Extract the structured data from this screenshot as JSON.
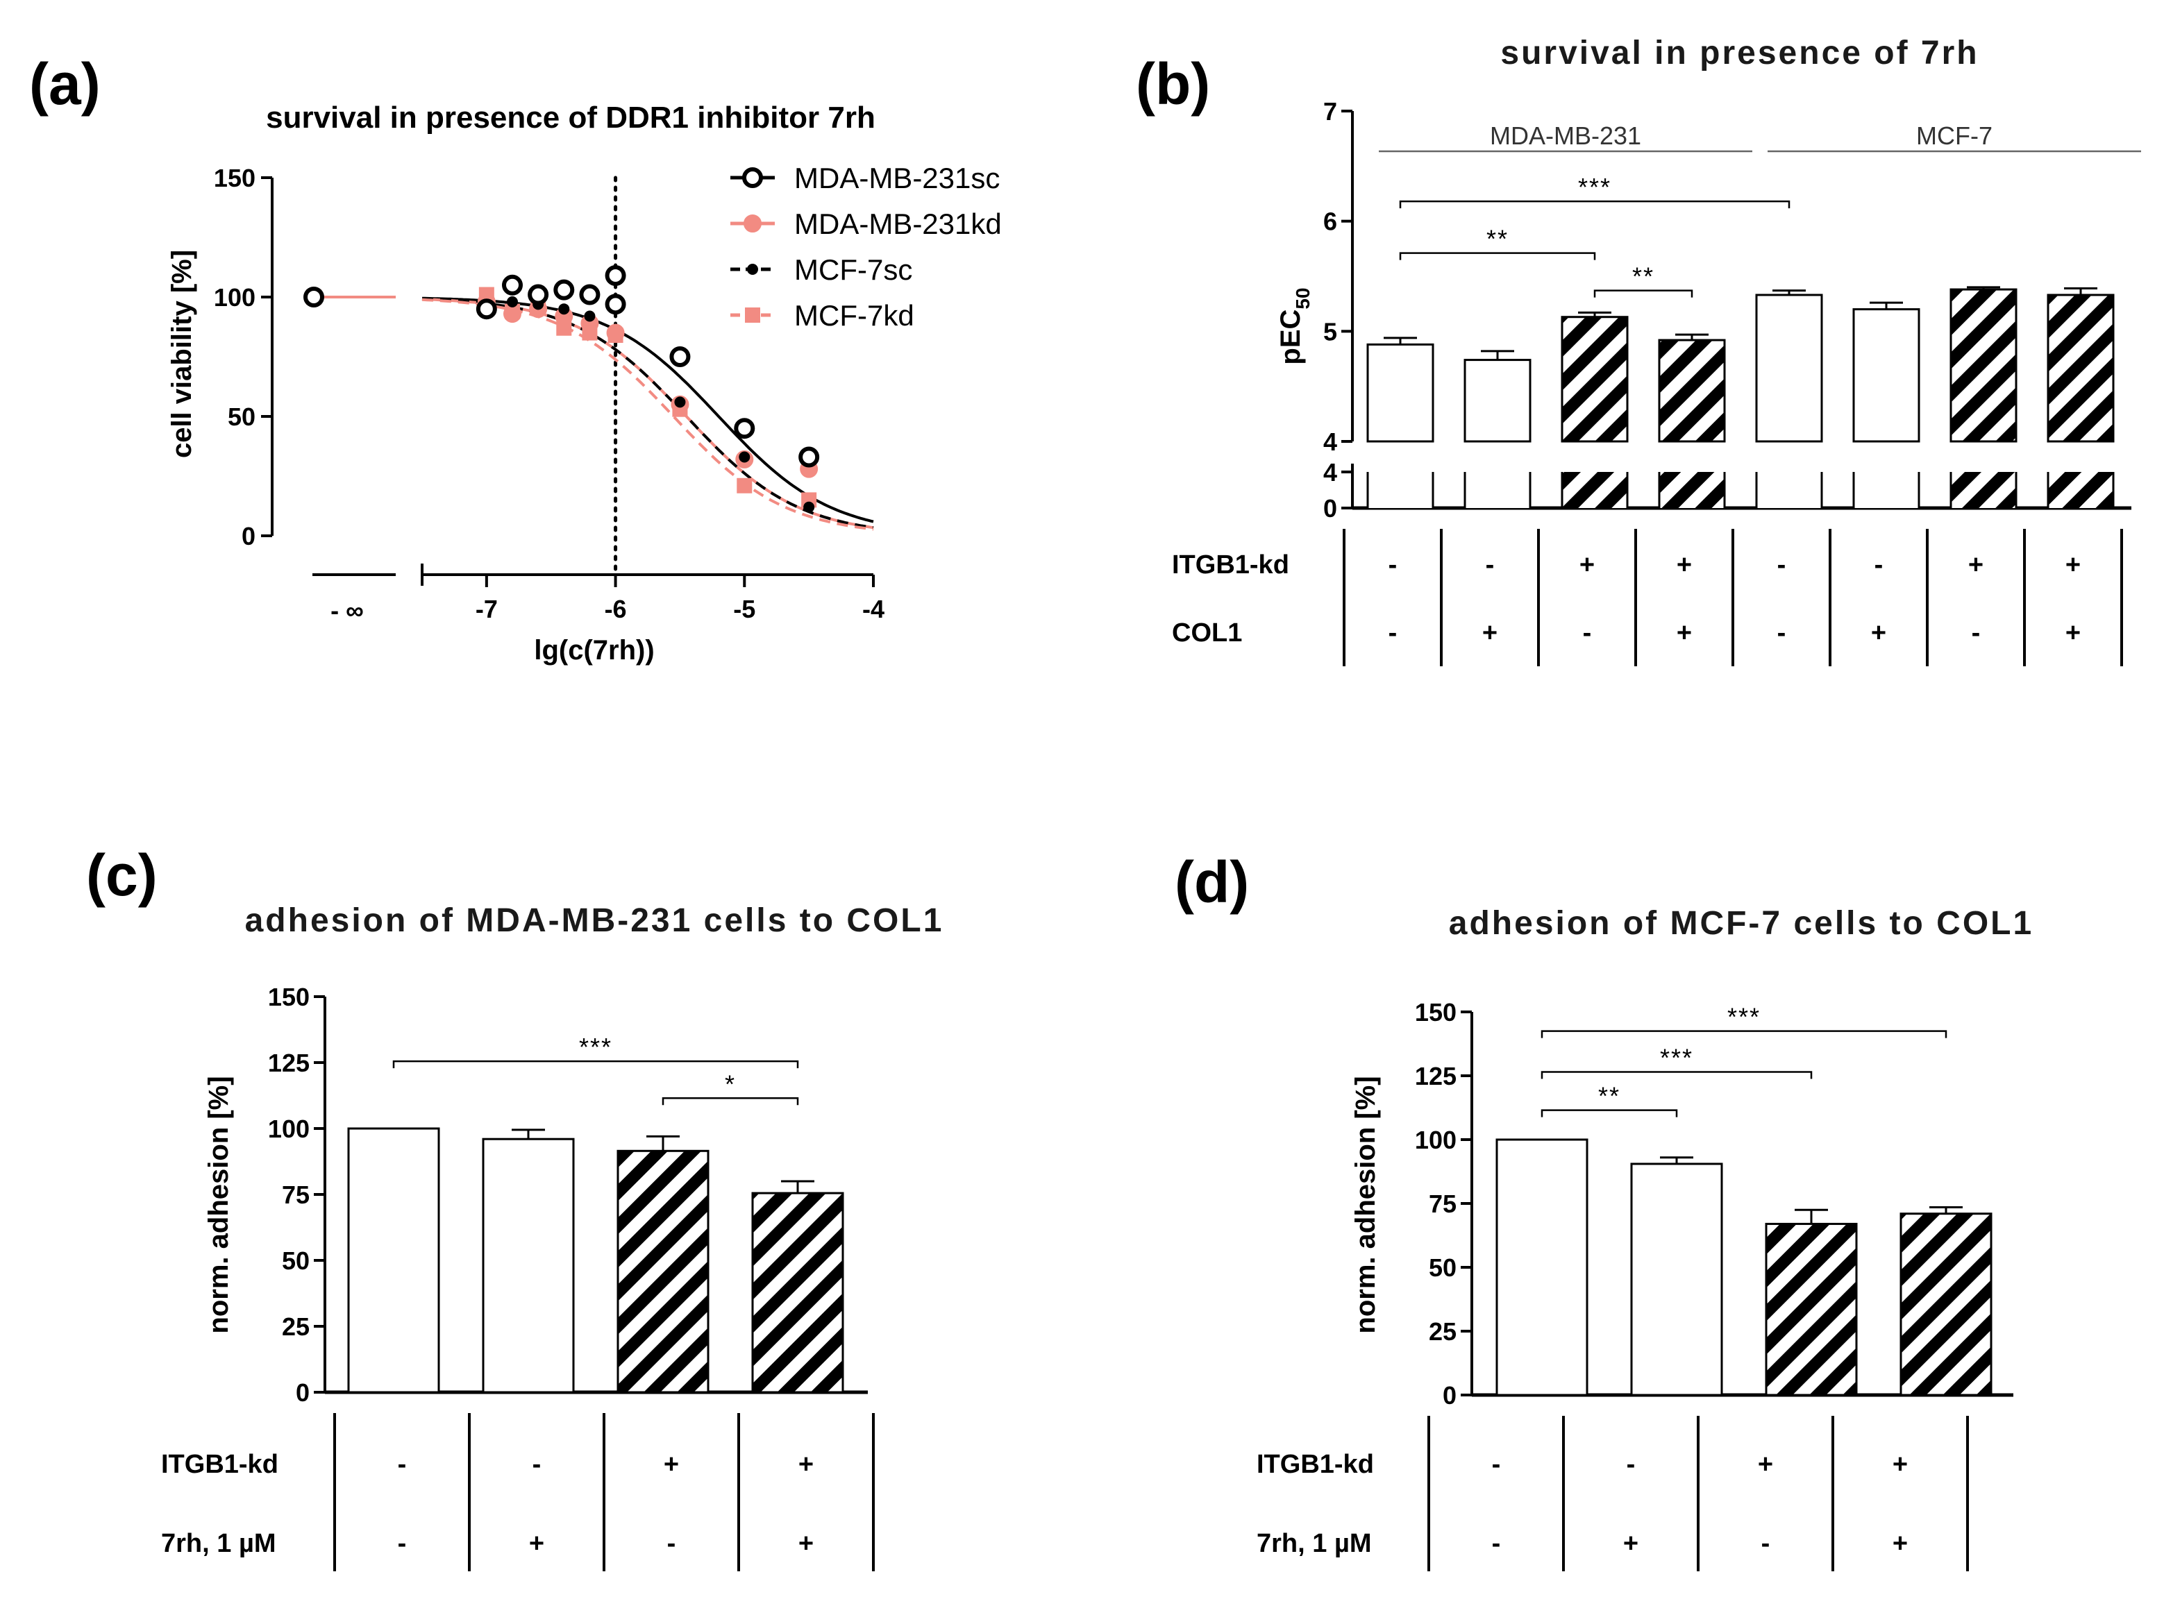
{
  "panels": [
    {
      "letter": "(a)"
    },
    {
      "letter": "(b)"
    },
    {
      "letter": "(c)"
    },
    {
      "letter": "(d)"
    }
  ],
  "chart_data": [
    {
      "type": "line",
      "panel": "(a)",
      "title": "survival in presence of DDR1 inhibitor 7rh",
      "xlabel": "lg(c(7rh))",
      "ylabel": "cell viability [%]",
      "ylim": [
        0,
        150
      ],
      "yticks": [
        "0",
        "50",
        "100",
        "150"
      ],
      "xlim": [
        -7.5,
        -4
      ],
      "xticks": [
        "-7",
        "-6",
        "-5",
        "-4"
      ],
      "x_control_label": "- ∞",
      "vline_x": -6,
      "x": [
        -7,
        -6.8,
        -6.6,
        -6.4,
        -6.2,
        -6,
        -5.5,
        -5,
        -4.5
      ],
      "series": [
        {
          "name": "MDA-MB-231sc",
          "color": "#000000",
          "dash": false,
          "marker": "open-circle",
          "control": 100,
          "values": [
            95,
            105,
            101,
            103,
            101,
            97,
            75,
            45,
            33
          ],
          "extra_x": -6,
          "extra_value": 109,
          "fit": {
            "ic50": -5.2,
            "top": 100
          }
        },
        {
          "name": "MDA-MB-231kd",
          "color": "#f28b82",
          "dash": false,
          "marker": "filled-circle",
          "control": 100,
          "values": [
            98,
            93,
            95,
            92,
            89,
            85,
            55,
            32,
            28
          ],
          "fit": {
            "ic50": -5.45,
            "top": 100
          }
        },
        {
          "name": "MCF-7sc",
          "color": "#000000",
          "dash": true,
          "marker": "small-dot",
          "control": 100,
          "values": [
            96,
            98,
            97,
            95,
            92,
            96,
            56,
            33,
            12
          ],
          "fit": {
            "ic50": -5.45,
            "top": 100
          }
        },
        {
          "name": "MCF-7kd",
          "color": "#f28b82",
          "dash": true,
          "marker": "square",
          "control": 100,
          "values": [
            101,
            94,
            97,
            87,
            85,
            84,
            53,
            21,
            15
          ],
          "fit": {
            "ic50": -5.55,
            "top": 100
          }
        }
      ]
    },
    {
      "type": "bar",
      "panel": "(b)",
      "title": "survival in presence of 7rh",
      "ylabel": "pEC",
      "ylabel_sub": "50",
      "ylim": [
        4,
        7
      ],
      "yticks": [
        "4",
        "5",
        "6",
        "7"
      ],
      "lower_ticks": [
        "0",
        "4"
      ],
      "groups": [
        {
          "label": "MDA-MB-231"
        },
        {
          "label": "MCF-7"
        }
      ],
      "values": [
        4.88,
        4.74,
        5.13,
        4.92,
        5.33,
        5.2,
        5.38,
        5.33
      ],
      "errors": [
        0.06,
        0.08,
        0.04,
        0.05,
        0.04,
        0.06,
        0.02,
        0.06
      ],
      "hatched": [
        false,
        false,
        true,
        true,
        false,
        false,
        true,
        true
      ],
      "rows": [
        {
          "label": "ITGB1-kd",
          "values": [
            "-",
            "-",
            "+",
            "+",
            "-",
            "-",
            "+",
            "+"
          ]
        },
        {
          "label": "COL1",
          "values": [
            "-",
            "+",
            "-",
            "+",
            "-",
            "+",
            "-",
            "+"
          ]
        }
      ],
      "significance": [
        {
          "from": 0,
          "to": 4,
          "y": 6.18,
          "label": "***"
        },
        {
          "from": 0,
          "to": 2,
          "y": 5.71,
          "label": "**"
        },
        {
          "from": 2,
          "to": 3,
          "y": 5.37,
          "label": "**"
        }
      ]
    },
    {
      "type": "bar",
      "panel": "(c)",
      "title": "adhesion of MDA-MB-231 cells to COL1",
      "ylabel": "norm. adhesion [%]",
      "ylim": [
        0,
        150
      ],
      "yticks": [
        "0",
        "25",
        "50",
        "75",
        "100",
        "125",
        "150"
      ],
      "values": [
        100,
        96,
        91.5,
        75.5
      ],
      "errors": [
        0,
        3.5,
        5.5,
        4.5
      ],
      "hatched": [
        false,
        false,
        true,
        true
      ],
      "rows": [
        {
          "label": "ITGB1-kd",
          "values": [
            "-",
            "-",
            "+",
            "+"
          ]
        },
        {
          "label": "7rh, 1 µM",
          "values": [
            "-",
            "+",
            "-",
            "+"
          ]
        }
      ],
      "significance": [
        {
          "from": 0,
          "to": 3,
          "y": 125.5,
          "label": "***"
        },
        {
          "from": 2,
          "to": 3,
          "y": 111.5,
          "label": "*"
        }
      ]
    },
    {
      "type": "bar",
      "panel": "(d)",
      "title": "adhesion of MCF-7 cells to COL1",
      "ylabel": "norm. adhesion [%]",
      "ylim": [
        0,
        150
      ],
      "yticks": [
        "0",
        "25",
        "50",
        "75",
        "100",
        "125",
        "150"
      ],
      "values": [
        100,
        90.5,
        67,
        71
      ],
      "errors": [
        0,
        2.5,
        5.5,
        2.5
      ],
      "hatched": [
        false,
        false,
        true,
        true
      ],
      "rows": [
        {
          "label": "ITGB1-kd",
          "values": [
            "-",
            "-",
            "+",
            "+"
          ]
        },
        {
          "label": "7rh, 1 µM",
          "values": [
            "-",
            "+",
            "-",
            "+"
          ]
        }
      ],
      "significance": [
        {
          "from": 0,
          "to": 3,
          "y": 142.5,
          "label": "***"
        },
        {
          "from": 0,
          "to": 2,
          "y": 126.5,
          "label": "***"
        },
        {
          "from": 0,
          "to": 1,
          "y": 111.5,
          "label": "**"
        }
      ]
    }
  ]
}
